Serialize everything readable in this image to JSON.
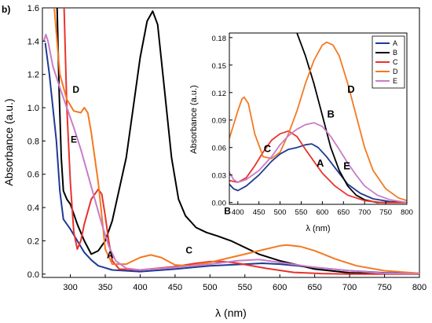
{
  "panel_label": "b)",
  "chart_data": [
    {
      "type": "line",
      "xlabel": "λ (nm)",
      "ylabel": "Absorbance (a.u.)",
      "xlim": [
        260,
        800
      ],
      "ylim": [
        -0.02,
        1.6
      ],
      "xticks": [
        300,
        350,
        400,
        450,
        500,
        550,
        600,
        650,
        700,
        750,
        800
      ],
      "yticks": [
        0.0,
        0.2,
        0.4,
        0.6,
        0.8,
        1.0,
        1.2,
        1.4,
        1.6
      ],
      "ytick_labels": [
        "0.0",
        "0.2",
        "0.4",
        "0.6",
        "0.8",
        "1.0",
        "1.2",
        "1.4",
        "1.6"
      ],
      "series": [
        {
          "name": "A",
          "color": "#1f3a93",
          "points": [
            [
              264,
              1.39
            ],
            [
              270,
              1.2
            ],
            [
              280,
              0.8
            ],
            [
              285,
              0.5
            ],
            [
              290,
              0.33
            ],
            [
              300,
              0.27
            ],
            [
              310,
              0.2
            ],
            [
              320,
              0.13
            ],
            [
              330,
              0.085
            ],
            [
              340,
              0.05
            ],
            [
              360,
              0.025
            ],
            [
              400,
              0.015
            ],
            [
              450,
              0.03
            ],
            [
              500,
              0.05
            ],
            [
              550,
              0.06
            ],
            [
              575,
              0.065
            ],
            [
              600,
              0.06
            ],
            [
              650,
              0.04
            ],
            [
              700,
              0.02
            ],
            [
              750,
              0.008
            ],
            [
              800,
              0.003
            ]
          ]
        },
        {
          "name": "B",
          "color": "#000000",
          "points": [
            [
              281,
              1.6
            ],
            [
              284,
              1.1
            ],
            [
              287,
              0.7
            ],
            [
              290,
              0.5
            ],
            [
              295,
              0.45
            ],
            [
              300,
              0.42
            ],
            [
              310,
              0.3
            ],
            [
              320,
              0.2
            ],
            [
              330,
              0.12
            ],
            [
              340,
              0.14
            ],
            [
              350,
              0.2
            ],
            [
              360,
              0.32
            ],
            [
              380,
              0.7
            ],
            [
              390,
              1.0
            ],
            [
              400,
              1.3
            ],
            [
              410,
              1.52
            ],
            [
              418,
              1.58
            ],
            [
              425,
              1.5
            ],
            [
              435,
              1.1
            ],
            [
              445,
              0.7
            ],
            [
              455,
              0.45
            ],
            [
              465,
              0.35
            ],
            [
              480,
              0.28
            ],
            [
              495,
              0.25
            ],
            [
              510,
              0.23
            ],
            [
              530,
              0.2
            ],
            [
              550,
              0.16
            ],
            [
              570,
              0.12
            ],
            [
              600,
              0.08
            ],
            [
              650,
              0.03
            ],
            [
              700,
              0.008
            ],
            [
              750,
              0.002
            ],
            [
              800,
              0.0
            ]
          ]
        },
        {
          "name": "C",
          "color": "#e8332e",
          "points": [
            [
              291,
              1.6
            ],
            [
              295,
              1.0
            ],
            [
              300,
              0.55
            ],
            [
              305,
              0.25
            ],
            [
              310,
              0.15
            ],
            [
              315,
              0.2
            ],
            [
              320,
              0.3
            ],
            [
              330,
              0.45
            ],
            [
              340,
              0.51
            ],
            [
              345,
              0.48
            ],
            [
              350,
              0.35
            ],
            [
              355,
              0.2
            ],
            [
              360,
              0.08
            ],
            [
              370,
              0.03
            ],
            [
              400,
              0.025
            ],
            [
              450,
              0.045
            ],
            [
              480,
              0.065
            ],
            [
              500,
              0.075
            ],
            [
              520,
              0.075
            ],
            [
              540,
              0.065
            ],
            [
              580,
              0.035
            ],
            [
              620,
              0.01
            ],
            [
              660,
              0.003
            ],
            [
              700,
              0.0
            ],
            [
              800,
              0.0
            ]
          ]
        },
        {
          "name": "D",
          "color": "#f47920",
          "points": [
            [
              277,
              1.6
            ],
            [
              285,
              1.2
            ],
            [
              295,
              1.05
            ],
            [
              305,
              0.98
            ],
            [
              315,
              0.97
            ],
            [
              320,
              1.0
            ],
            [
              325,
              0.97
            ],
            [
              330,
              0.85
            ],
            [
              340,
              0.55
            ],
            [
              345,
              0.35
            ],
            [
              350,
              0.15
            ],
            [
              360,
              0.06
            ],
            [
              380,
              0.06
            ],
            [
              400,
              0.1
            ],
            [
              415,
              0.115
            ],
            [
              430,
              0.1
            ],
            [
              450,
              0.055
            ],
            [
              470,
              0.05
            ],
            [
              500,
              0.07
            ],
            [
              540,
              0.11
            ],
            [
              580,
              0.15
            ],
            [
              600,
              0.17
            ],
            [
              610,
              0.175
            ],
            [
              630,
              0.165
            ],
            [
              650,
              0.14
            ],
            [
              680,
              0.09
            ],
            [
              710,
              0.05
            ],
            [
              750,
              0.02
            ],
            [
              800,
              0.005
            ]
          ]
        },
        {
          "name": "E",
          "color": "#c77dc7",
          "points": [
            [
              262,
              1.4
            ],
            [
              265,
              1.44
            ],
            [
              268,
              1.4
            ],
            [
              275,
              1.25
            ],
            [
              285,
              1.12
            ],
            [
              295,
              1.0
            ],
            [
              305,
              0.88
            ],
            [
              315,
              0.75
            ],
            [
              325,
              0.6
            ],
            [
              335,
              0.45
            ],
            [
              345,
              0.3
            ],
            [
              355,
              0.17
            ],
            [
              365,
              0.08
            ],
            [
              380,
              0.035
            ],
            [
              400,
              0.025
            ],
            [
              450,
              0.04
            ],
            [
              500,
              0.06
            ],
            [
              540,
              0.08
            ],
            [
              570,
              0.087
            ],
            [
              600,
              0.07
            ],
            [
              650,
              0.04
            ],
            [
              700,
              0.02
            ],
            [
              750,
              0.005
            ],
            [
              800,
              0.0
            ]
          ]
        }
      ],
      "annotations": [
        {
          "text": "D",
          "x": 308,
          "y": 1.09
        },
        {
          "text": "E",
          "x": 305,
          "y": 0.79
        },
        {
          "text": "A",
          "x": 357,
          "y": 0.095
        },
        {
          "text": "C",
          "x": 470,
          "y": 0.125
        },
        {
          "text": "B",
          "x": 525,
          "y": 0.36
        }
      ]
    },
    {
      "type": "line",
      "xlabel": "λ (nm)",
      "ylabel": "Absorbance (a.u.)",
      "xlim": [
        380,
        800
      ],
      "ylim": [
        -0.002,
        0.185
      ],
      "xticks": [
        400,
        450,
        500,
        550,
        600,
        650,
        700,
        750,
        800
      ],
      "yticks": [
        0.0,
        0.03,
        0.06,
        0.09,
        0.12,
        0.15,
        0.18
      ],
      "ytick_labels": [
        "0.00",
        "0.03",
        "0.06",
        "0.09",
        "0.12",
        "0.15",
        "0.18"
      ],
      "legend": {
        "position": "top-right",
        "entries": [
          "A",
          "B",
          "C",
          "D",
          "E"
        ]
      },
      "series": [
        {
          "name": "A",
          "color": "#1f3a93",
          "points": [
            [
              380,
              0.02
            ],
            [
              390,
              0.015
            ],
            [
              400,
              0.013
            ],
            [
              420,
              0.018
            ],
            [
              450,
              0.03
            ],
            [
              480,
              0.045
            ],
            [
              500,
              0.053
            ],
            [
              520,
              0.058
            ],
            [
              540,
              0.06
            ],
            [
              560,
              0.063
            ],
            [
              575,
              0.064
            ],
            [
              590,
              0.06
            ],
            [
              610,
              0.05
            ],
            [
              630,
              0.038
            ],
            [
              660,
              0.02
            ],
            [
              690,
              0.01
            ],
            [
              720,
              0.004
            ],
            [
              760,
              0.001
            ],
            [
              800,
              0.0
            ]
          ]
        },
        {
          "name": "B",
          "color": "#000000",
          "points": [
            [
              540,
              0.185
            ],
            [
              560,
              0.16
            ],
            [
              580,
              0.13
            ],
            [
              600,
              0.095
            ],
            [
              620,
              0.06
            ],
            [
              640,
              0.035
            ],
            [
              660,
              0.018
            ],
            [
              680,
              0.008
            ],
            [
              700,
              0.003
            ],
            [
              730,
              0.0
            ],
            [
              800,
              0.0
            ]
          ]
        },
        {
          "name": "C",
          "color": "#e8332e",
          "points": [
            [
              380,
              0.024
            ],
            [
              400,
              0.022
            ],
            [
              420,
              0.027
            ],
            [
              440,
              0.04
            ],
            [
              460,
              0.055
            ],
            [
              480,
              0.068
            ],
            [
              500,
              0.075
            ],
            [
              520,
              0.078
            ],
            [
              540,
              0.072
            ],
            [
              560,
              0.058
            ],
            [
              580,
              0.045
            ],
            [
              600,
              0.032
            ],
            [
              630,
              0.018
            ],
            [
              660,
              0.008
            ],
            [
              700,
              0.002
            ],
            [
              740,
              0.0
            ],
            [
              800,
              0.0
            ]
          ]
        },
        {
          "name": "D",
          "color": "#f47920",
          "points": [
            [
              380,
              0.07
            ],
            [
              390,
              0.085
            ],
            [
              400,
              0.1
            ],
            [
              410,
              0.113
            ],
            [
              415,
              0.115
            ],
            [
              425,
              0.108
            ],
            [
              440,
              0.075
            ],
            [
              460,
              0.05
            ],
            [
              480,
              0.048
            ],
            [
              500,
              0.055
            ],
            [
              520,
              0.075
            ],
            [
              540,
              0.1
            ],
            [
              560,
              0.13
            ],
            [
              580,
              0.155
            ],
            [
              600,
              0.172
            ],
            [
              610,
              0.175
            ],
            [
              625,
              0.172
            ],
            [
              640,
              0.16
            ],
            [
              660,
              0.13
            ],
            [
              680,
              0.095
            ],
            [
              700,
              0.06
            ],
            [
              720,
              0.035
            ],
            [
              750,
              0.015
            ],
            [
              780,
              0.005
            ],
            [
              800,
              0.002
            ]
          ]
        },
        {
          "name": "E",
          "color": "#c77dc7",
          "points": [
            [
              380,
              0.033
            ],
            [
              390,
              0.025
            ],
            [
              400,
              0.022
            ],
            [
              420,
              0.025
            ],
            [
              450,
              0.035
            ],
            [
              480,
              0.05
            ],
            [
              500,
              0.063
            ],
            [
              520,
              0.073
            ],
            [
              540,
              0.08
            ],
            [
              560,
              0.085
            ],
            [
              580,
              0.087
            ],
            [
              600,
              0.083
            ],
            [
              620,
              0.072
            ],
            [
              640,
              0.058
            ],
            [
              660,
              0.043
            ],
            [
              680,
              0.03
            ],
            [
              700,
              0.018
            ],
            [
              730,
              0.008
            ],
            [
              760,
              0.003
            ],
            [
              800,
              0.0
            ]
          ]
        }
      ],
      "annotations": [
        {
          "text": "D",
          "x": 668,
          "y": 0.12
        },
        {
          "text": "B",
          "x": 620,
          "y": 0.093
        },
        {
          "text": "C",
          "x": 470,
          "y": 0.055
        },
        {
          "text": "A",
          "x": 595,
          "y": 0.039
        },
        {
          "text": "E",
          "x": 658,
          "y": 0.036
        }
      ]
    }
  ]
}
